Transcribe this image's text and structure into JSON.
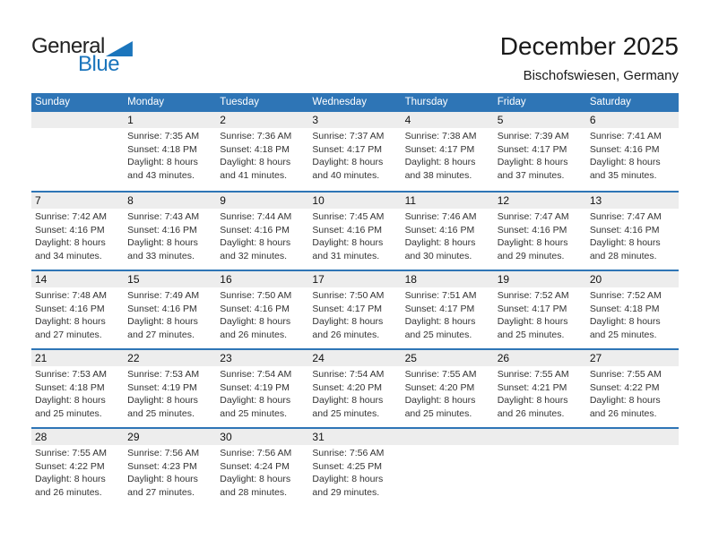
{
  "logo": {
    "word1": "General",
    "word2": "Blue"
  },
  "header": {
    "title": "December 2025",
    "subtitle": "Bischofswiesen, Germany"
  },
  "colors": {
    "header_bg": "#2e75b6",
    "row_line": "#2e75b6",
    "band_bg": "#ededed",
    "logo_blue": "#1b75bc",
    "logo_dark": "#222222",
    "title_color": "#1a1a1a",
    "cell_text": "#333333"
  },
  "calendar": {
    "weekdays": [
      "Sunday",
      "Monday",
      "Tuesday",
      "Wednesday",
      "Thursday",
      "Friday",
      "Saturday"
    ],
    "weeks": [
      {
        "days": [
          null,
          {
            "date": "1",
            "sunrise": "Sunrise: 7:35 AM",
            "sunset": "Sunset: 4:18 PM",
            "daylight_line1": "Daylight: 8 hours",
            "daylight_line2": "and 43 minutes."
          },
          {
            "date": "2",
            "sunrise": "Sunrise: 7:36 AM",
            "sunset": "Sunset: 4:18 PM",
            "daylight_line1": "Daylight: 8 hours",
            "daylight_line2": "and 41 minutes."
          },
          {
            "date": "3",
            "sunrise": "Sunrise: 7:37 AM",
            "sunset": "Sunset: 4:17 PM",
            "daylight_line1": "Daylight: 8 hours",
            "daylight_line2": "and 40 minutes."
          },
          {
            "date": "4",
            "sunrise": "Sunrise: 7:38 AM",
            "sunset": "Sunset: 4:17 PM",
            "daylight_line1": "Daylight: 8 hours",
            "daylight_line2": "and 38 minutes."
          },
          {
            "date": "5",
            "sunrise": "Sunrise: 7:39 AM",
            "sunset": "Sunset: 4:17 PM",
            "daylight_line1": "Daylight: 8 hours",
            "daylight_line2": "and 37 minutes."
          },
          {
            "date": "6",
            "sunrise": "Sunrise: 7:41 AM",
            "sunset": "Sunset: 4:16 PM",
            "daylight_line1": "Daylight: 8 hours",
            "daylight_line2": "and 35 minutes."
          }
        ]
      },
      {
        "days": [
          {
            "date": "7",
            "sunrise": "Sunrise: 7:42 AM",
            "sunset": "Sunset: 4:16 PM",
            "daylight_line1": "Daylight: 8 hours",
            "daylight_line2": "and 34 minutes."
          },
          {
            "date": "8",
            "sunrise": "Sunrise: 7:43 AM",
            "sunset": "Sunset: 4:16 PM",
            "daylight_line1": "Daylight: 8 hours",
            "daylight_line2": "and 33 minutes."
          },
          {
            "date": "9",
            "sunrise": "Sunrise: 7:44 AM",
            "sunset": "Sunset: 4:16 PM",
            "daylight_line1": "Daylight: 8 hours",
            "daylight_line2": "and 32 minutes."
          },
          {
            "date": "10",
            "sunrise": "Sunrise: 7:45 AM",
            "sunset": "Sunset: 4:16 PM",
            "daylight_line1": "Daylight: 8 hours",
            "daylight_line2": "and 31 minutes."
          },
          {
            "date": "11",
            "sunrise": "Sunrise: 7:46 AM",
            "sunset": "Sunset: 4:16 PM",
            "daylight_line1": "Daylight: 8 hours",
            "daylight_line2": "and 30 minutes."
          },
          {
            "date": "12",
            "sunrise": "Sunrise: 7:47 AM",
            "sunset": "Sunset: 4:16 PM",
            "daylight_line1": "Daylight: 8 hours",
            "daylight_line2": "and 29 minutes."
          },
          {
            "date": "13",
            "sunrise": "Sunrise: 7:47 AM",
            "sunset": "Sunset: 4:16 PM",
            "daylight_line1": "Daylight: 8 hours",
            "daylight_line2": "and 28 minutes."
          }
        ]
      },
      {
        "days": [
          {
            "date": "14",
            "sunrise": "Sunrise: 7:48 AM",
            "sunset": "Sunset: 4:16 PM",
            "daylight_line1": "Daylight: 8 hours",
            "daylight_line2": "and 27 minutes."
          },
          {
            "date": "15",
            "sunrise": "Sunrise: 7:49 AM",
            "sunset": "Sunset: 4:16 PM",
            "daylight_line1": "Daylight: 8 hours",
            "daylight_line2": "and 27 minutes."
          },
          {
            "date": "16",
            "sunrise": "Sunrise: 7:50 AM",
            "sunset": "Sunset: 4:16 PM",
            "daylight_line1": "Daylight: 8 hours",
            "daylight_line2": "and 26 minutes."
          },
          {
            "date": "17",
            "sunrise": "Sunrise: 7:50 AM",
            "sunset": "Sunset: 4:17 PM",
            "daylight_line1": "Daylight: 8 hours",
            "daylight_line2": "and 26 minutes."
          },
          {
            "date": "18",
            "sunrise": "Sunrise: 7:51 AM",
            "sunset": "Sunset: 4:17 PM",
            "daylight_line1": "Daylight: 8 hours",
            "daylight_line2": "and 25 minutes."
          },
          {
            "date": "19",
            "sunrise": "Sunrise: 7:52 AM",
            "sunset": "Sunset: 4:17 PM",
            "daylight_line1": "Daylight: 8 hours",
            "daylight_line2": "and 25 minutes."
          },
          {
            "date": "20",
            "sunrise": "Sunrise: 7:52 AM",
            "sunset": "Sunset: 4:18 PM",
            "daylight_line1": "Daylight: 8 hours",
            "daylight_line2": "and 25 minutes."
          }
        ]
      },
      {
        "days": [
          {
            "date": "21",
            "sunrise": "Sunrise: 7:53 AM",
            "sunset": "Sunset: 4:18 PM",
            "daylight_line1": "Daylight: 8 hours",
            "daylight_line2": "and 25 minutes."
          },
          {
            "date": "22",
            "sunrise": "Sunrise: 7:53 AM",
            "sunset": "Sunset: 4:19 PM",
            "daylight_line1": "Daylight: 8 hours",
            "daylight_line2": "and 25 minutes."
          },
          {
            "date": "23",
            "sunrise": "Sunrise: 7:54 AM",
            "sunset": "Sunset: 4:19 PM",
            "daylight_line1": "Daylight: 8 hours",
            "daylight_line2": "and 25 minutes."
          },
          {
            "date": "24",
            "sunrise": "Sunrise: 7:54 AM",
            "sunset": "Sunset: 4:20 PM",
            "daylight_line1": "Daylight: 8 hours",
            "daylight_line2": "and 25 minutes."
          },
          {
            "date": "25",
            "sunrise": "Sunrise: 7:55 AM",
            "sunset": "Sunset: 4:20 PM",
            "daylight_line1": "Daylight: 8 hours",
            "daylight_line2": "and 25 minutes."
          },
          {
            "date": "26",
            "sunrise": "Sunrise: 7:55 AM",
            "sunset": "Sunset: 4:21 PM",
            "daylight_line1": "Daylight: 8 hours",
            "daylight_line2": "and 26 minutes."
          },
          {
            "date": "27",
            "sunrise": "Sunrise: 7:55 AM",
            "sunset": "Sunset: 4:22 PM",
            "daylight_line1": "Daylight: 8 hours",
            "daylight_line2": "and 26 minutes."
          }
        ]
      },
      {
        "days": [
          {
            "date": "28",
            "sunrise": "Sunrise: 7:55 AM",
            "sunset": "Sunset: 4:22 PM",
            "daylight_line1": "Daylight: 8 hours",
            "daylight_line2": "and 26 minutes."
          },
          {
            "date": "29",
            "sunrise": "Sunrise: 7:56 AM",
            "sunset": "Sunset: 4:23 PM",
            "daylight_line1": "Daylight: 8 hours",
            "daylight_line2": "and 27 minutes."
          },
          {
            "date": "30",
            "sunrise": "Sunrise: 7:56 AM",
            "sunset": "Sunset: 4:24 PM",
            "daylight_line1": "Daylight: 8 hours",
            "daylight_line2": "and 28 minutes."
          },
          {
            "date": "31",
            "sunrise": "Sunrise: 7:56 AM",
            "sunset": "Sunset: 4:25 PM",
            "daylight_line1": "Daylight: 8 hours",
            "daylight_line2": "and 29 minutes."
          },
          null,
          null,
          null
        ]
      }
    ]
  }
}
